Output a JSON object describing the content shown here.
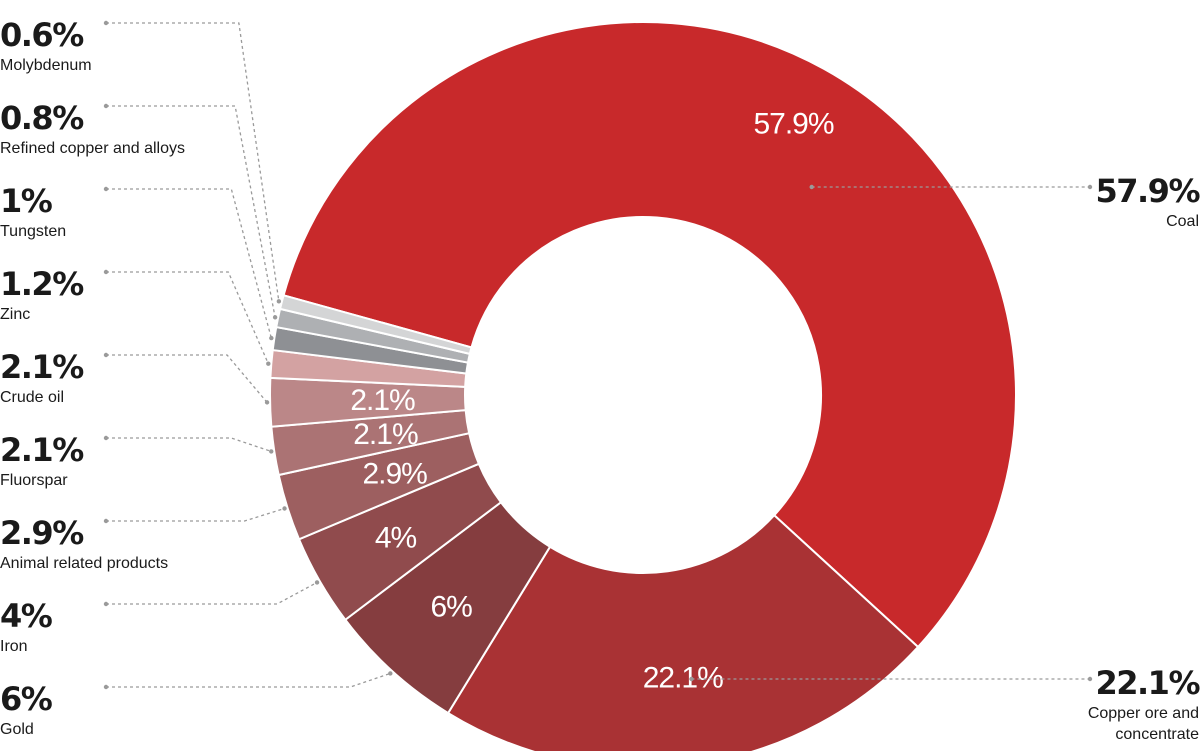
{
  "colors": {
    "Coal": "#c8292b",
    "Copper ore and concentrate": "#a93234",
    "Gold": "#853d3f",
    "Iron": "#904b4d",
    "Animal related products": "#9d5f60",
    "Fluorspar": "#ab7374",
    "Crude oil": "#bb8788",
    "Zinc": "#d3a2a2",
    "Tungsten": "#8e9094",
    "Refined copper and alloys": "#aeb0b3",
    "Molybdenum": "#d4d5d6"
  },
  "chart_data": {
    "type": "pie",
    "donut": true,
    "slices": [
      {
        "label": "Coal",
        "value": 57.9,
        "label_text": "57.9%",
        "inner_text": "57.9%",
        "name_lines": [
          "Coal"
        ]
      },
      {
        "label": "Copper ore and concentrate",
        "value": 22.1,
        "label_text": "22.1%",
        "inner_text": "22.1%",
        "name_lines": [
          "Copper ore and",
          "concentrate"
        ]
      },
      {
        "label": "Gold",
        "value": 6,
        "label_text": "6%",
        "inner_text": "6%",
        "name_lines": [
          "Gold"
        ]
      },
      {
        "label": "Iron",
        "value": 4,
        "label_text": "4%",
        "inner_text": "4%",
        "name_lines": [
          "Iron"
        ]
      },
      {
        "label": "Animal related products",
        "value": 2.9,
        "label_text": "2.9%",
        "inner_text": "2.9%",
        "name_lines": [
          "Animal related products"
        ]
      },
      {
        "label": "Fluorspar",
        "value": 2.1,
        "label_text": "2.1%",
        "inner_text": "2.1%",
        "name_lines": [
          "Fluorspar"
        ]
      },
      {
        "label": "Crude oil",
        "value": 2.1,
        "label_text": "2.1%",
        "inner_text": "2.1%",
        "name_lines": [
          "Crude oil"
        ]
      },
      {
        "label": "Zinc",
        "value": 1.2,
        "label_text": "1.2%",
        "inner_text": "",
        "name_lines": [
          "Zinc"
        ]
      },
      {
        "label": "Tungsten",
        "value": 1,
        "label_text": "1%",
        "inner_text": "",
        "name_lines": [
          "Tungsten"
        ]
      },
      {
        "label": "Refined copper and alloys",
        "value": 0.8,
        "label_text": "0.8%",
        "inner_text": "",
        "name_lines": [
          "Refined copper and alloys"
        ]
      },
      {
        "label": "Molybdenum",
        "value": 0.6,
        "label_text": "0.6%",
        "inner_text": "",
        "name_lines": [
          "Molybdenum"
        ]
      }
    ]
  }
}
